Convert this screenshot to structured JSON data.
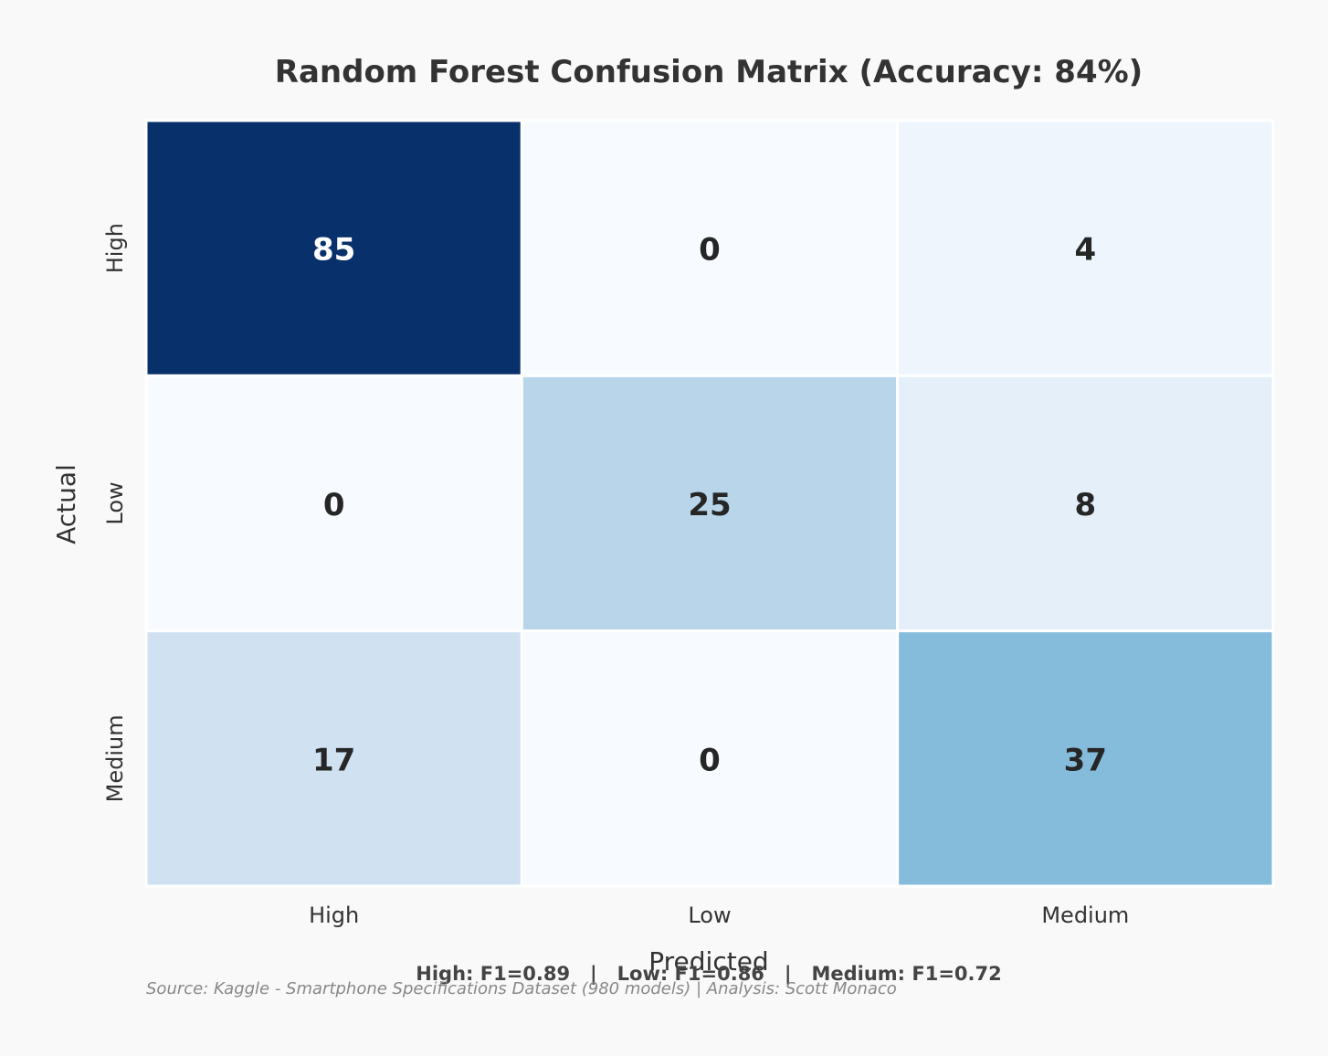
{
  "chart_data": {
    "type": "heatmap",
    "title": "Random Forest Confusion Matrix  (Accuracy: 84%)",
    "xlabel": "Predicted",
    "ylabel": "Actual",
    "x_categories": [
      "High",
      "Low",
      "Medium"
    ],
    "y_categories": [
      "High",
      "Low",
      "Medium"
    ],
    "values": [
      [
        85,
        0,
        4
      ],
      [
        0,
        25,
        8
      ],
      [
        17,
        0,
        37
      ]
    ],
    "colormap": "Blues",
    "color_range": [
      0,
      85
    ],
    "colorbar": false,
    "cell_text_dark": "#262626",
    "cell_text_light": "#ffffff"
  },
  "metrics_text": "High: F1=0.89   |   Low: F1=0.86   |   Medium: F1=0.72",
  "source_text": "Source: Kaggle - Smartphone Specifications Dataset (980 models) | Analysis: Scott Monaco",
  "colors": {
    "background": "#f9f9f9",
    "text": "#333333",
    "source_text": "#888888",
    "cell_border": "#ffffff"
  }
}
